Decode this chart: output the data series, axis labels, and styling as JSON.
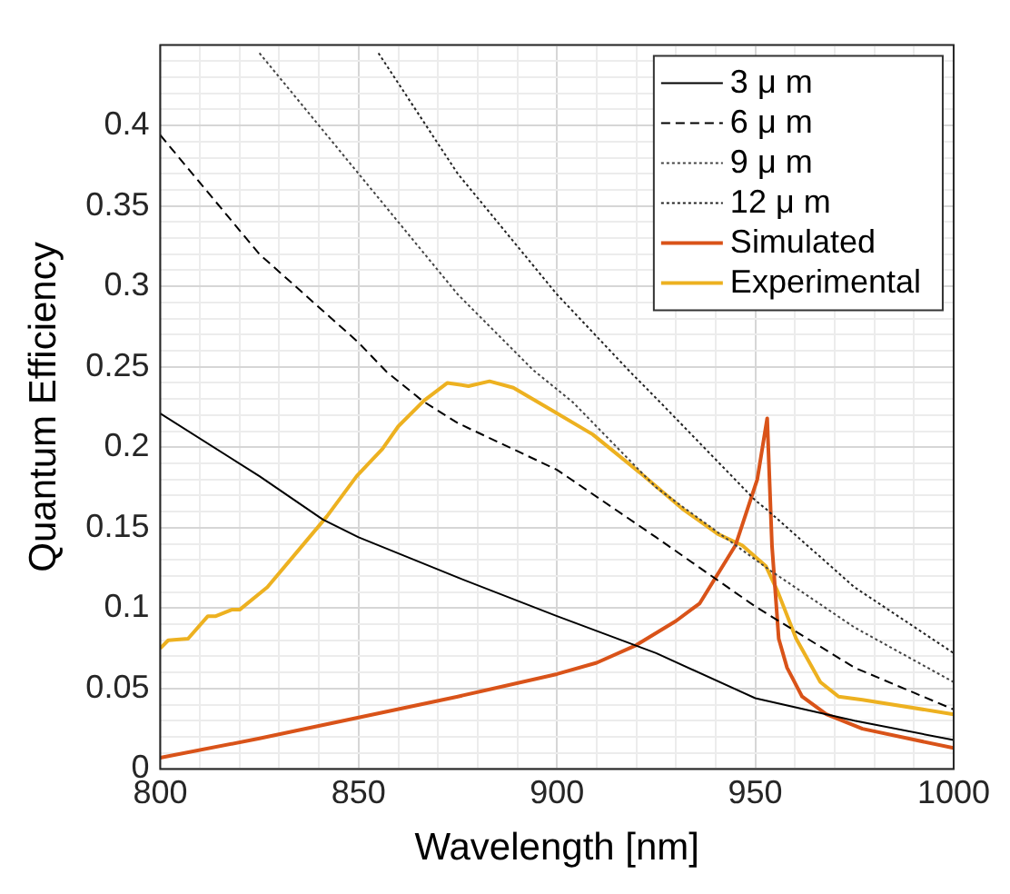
{
  "chart_data": {
    "type": "line",
    "xlabel": "Wavelength [nm]",
    "ylabel": "Quantum Efficiency",
    "xlim": [
      800,
      1000
    ],
    "ylim": [
      0,
      0.45
    ],
    "xticks": [
      800,
      {
        "value": 810,
        "label": null
      },
      {
        "value": 820,
        "label": null
      },
      {
        "value": 830,
        "label": null
      },
      {
        "value": 840,
        "label": null
      },
      850,
      {
        "value": 860,
        "label": null
      },
      {
        "value": 870,
        "label": null
      },
      {
        "value": 880,
        "label": null
      },
      {
        "value": 890,
        "label": null
      },
      900,
      {
        "value": 910,
        "label": null
      },
      {
        "value": 920,
        "label": null
      },
      {
        "value": 930,
        "label": null
      },
      {
        "value": 940,
        "label": null
      },
      950,
      {
        "value": 960,
        "label": null
      },
      {
        "value": 970,
        "label": null
      },
      {
        "value": 980,
        "label": null
      },
      {
        "value": 990,
        "label": null
      },
      1000
    ],
    "yticks": [
      0,
      {
        "value": 0.01,
        "label": null
      },
      {
        "value": 0.02,
        "label": null
      },
      {
        "value": 0.03,
        "label": null
      },
      {
        "value": 0.04,
        "label": null
      },
      0.05,
      {
        "value": 0.06,
        "label": null
      },
      {
        "value": 0.07,
        "label": null
      },
      {
        "value": 0.08,
        "label": null
      },
      {
        "value": 0.09,
        "label": null
      },
      0.1,
      {
        "value": 0.11,
        "label": null
      },
      {
        "value": 0.12,
        "label": null
      },
      {
        "value": 0.13,
        "label": null
      },
      {
        "value": 0.14,
        "label": null
      },
      0.15,
      {
        "value": 0.16,
        "label": null
      },
      {
        "value": 0.17,
        "label": null
      },
      {
        "value": 0.18,
        "label": null
      },
      {
        "value": 0.19,
        "label": null
      },
      0.2,
      {
        "value": 0.21,
        "label": null
      },
      {
        "value": 0.22,
        "label": null
      },
      {
        "value": 0.23,
        "label": null
      },
      {
        "value": 0.24,
        "label": null
      },
      0.25,
      {
        "value": 0.26,
        "label": null
      },
      {
        "value": 0.27,
        "label": null
      },
      {
        "value": 0.28,
        "label": null
      },
      {
        "value": 0.29,
        "label": null
      },
      0.3,
      {
        "value": 0.31,
        "label": null
      },
      {
        "value": 0.32,
        "label": null
      },
      {
        "value": 0.33,
        "label": null
      },
      {
        "value": 0.34,
        "label": null
      },
      0.35,
      {
        "value": 0.36,
        "label": null
      },
      {
        "value": 0.37,
        "label": null
      },
      {
        "value": 0.38,
        "label": null
      },
      {
        "value": 0.39,
        "label": null
      },
      0.4,
      {
        "value": 0.41,
        "label": null
      },
      {
        "value": 0.42,
        "label": null
      },
      {
        "value": 0.43,
        "label": null
      },
      {
        "value": 0.44,
        "label": null
      },
      {
        "value": 0.45,
        "label": null
      }
    ],
    "grid": true,
    "legend": "top right",
    "marker": "none",
    "series": [
      {
        "name": "3 μ m",
        "color": "#000000",
        "line_style": "solid",
        "x": [
          800,
          825,
          841,
          850,
          875,
          900,
          925,
          950,
          975,
          1000
        ],
        "values": [
          0.221,
          0.182,
          0.155,
          0.144,
          0.119,
          0.095,
          0.072,
          0.044,
          0.03,
          0.018
        ]
      },
      {
        "name": "6 μ m",
        "color": "#000000",
        "line_style": "dashed",
        "x": [
          800,
          825,
          850,
          857,
          866,
          875,
          900,
          925,
          950,
          975,
          1000
        ],
        "values": [
          0.394,
          0.32,
          0.265,
          0.247,
          0.229,
          0.215,
          0.186,
          0.144,
          0.101,
          0.063,
          0.037
        ]
      },
      {
        "name": "9 μ m",
        "color": "#444444",
        "line_style": "dotted",
        "x": [
          825,
          850,
          875,
          894,
          900,
          904,
          925,
          954,
          975,
          1000
        ],
        "values": [
          0.445,
          0.37,
          0.295,
          0.248,
          0.236,
          0.228,
          0.175,
          0.123,
          0.088,
          0.054
        ]
      },
      {
        "name": "12 μ m",
        "color": "#222222",
        "line_style": "dotted",
        "x": [
          855,
          875,
          900,
          918,
          926,
          950,
          953,
          975,
          1000
        ],
        "values": [
          0.445,
          0.37,
          0.295,
          0.248,
          0.228,
          0.167,
          0.161,
          0.113,
          0.072
        ]
      },
      {
        "name": "Simulated",
        "color": "#d95319",
        "line_style": "solid",
        "x": [
          800,
          825,
          850,
          875,
          900,
          910,
          920,
          930,
          936,
          945,
          950.5,
          953,
          954.2,
          955.9,
          958,
          961.8,
          967.9,
          977,
          1000
        ],
        "values": [
          0.007,
          0.019,
          0.032,
          0.045,
          0.059,
          0.066,
          0.077,
          0.092,
          0.103,
          0.139,
          0.18,
          0.218,
          0.139,
          0.081,
          0.063,
          0.045,
          0.034,
          0.025,
          0.013
        ]
      },
      {
        "name": "Experimental",
        "color": "#edb120",
        "line_style": "solid",
        "x": [
          800,
          802,
          807,
          812,
          814,
          818,
          820,
          827,
          834.5,
          842,
          849.5,
          856,
          860,
          866.5,
          872.4,
          877.7,
          883,
          889,
          898,
          909,
          921,
          931.5,
          940.6,
          946.7,
          952.7,
          955.7,
          960.3,
          966.4,
          971,
          977,
          1000
        ],
        "values": [
          0.075,
          0.08,
          0.081,
          0.095,
          0.095,
          0.099,
          0.099,
          0.113,
          0.135,
          0.157,
          0.182,
          0.199,
          0.213,
          0.229,
          0.24,
          0.238,
          0.241,
          0.237,
          0.224,
          0.208,
          0.184,
          0.162,
          0.146,
          0.139,
          0.126,
          0.11,
          0.081,
          0.054,
          0.045,
          0.043,
          0.034
        ]
      }
    ]
  }
}
